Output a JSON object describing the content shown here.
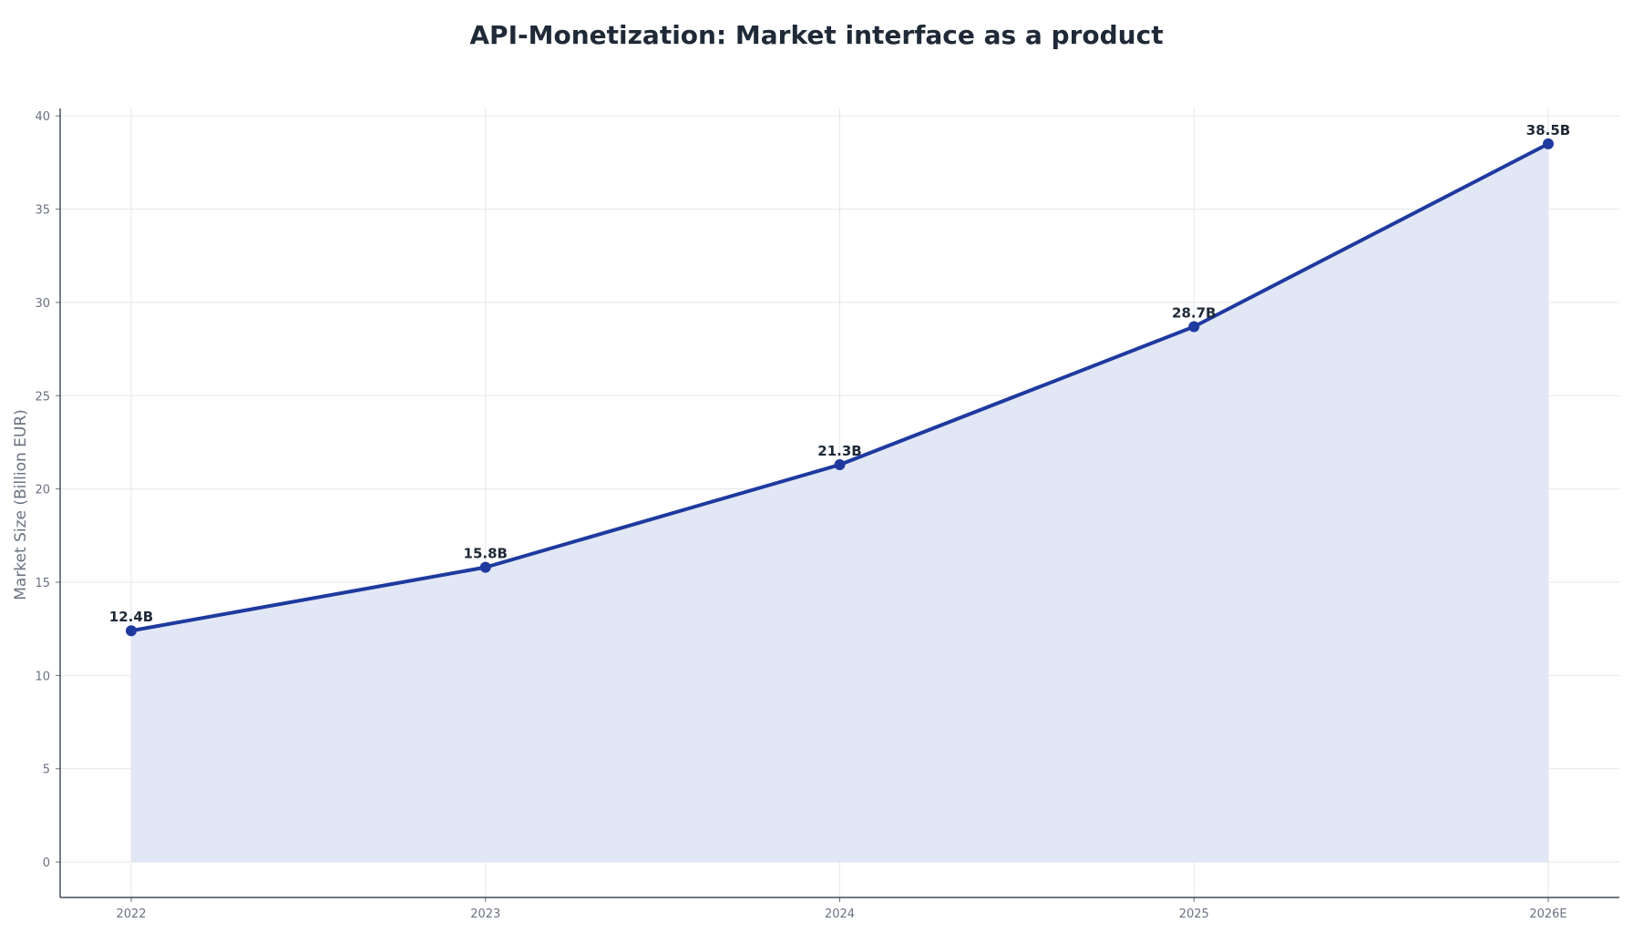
{
  "chart_data": {
    "type": "area",
    "title": "API-Monetization: Market interface as a product",
    "xlabel": "",
    "ylabel": "Market Size (Billion EUR)",
    "categories": [
      "2022",
      "2023",
      "2024",
      "2025",
      "2026E"
    ],
    "series": [
      {
        "values": [
          12.4,
          15.8,
          21.3,
          28.7,
          38.5
        ],
        "labels": [
          "12.4B",
          "15.8B",
          "21.3B",
          "28.7B",
          "38.5B"
        ]
      }
    ],
    "ylim": [
      -1.9,
      40.4
    ],
    "yticks": [
      0,
      5,
      10,
      15,
      20,
      25,
      30,
      35,
      40
    ],
    "grid": true,
    "colors": {
      "line": "#1e3a9f",
      "fill": "#e2e7f5",
      "grid": "#e5e7eb",
      "axis": "#1f2937"
    }
  }
}
